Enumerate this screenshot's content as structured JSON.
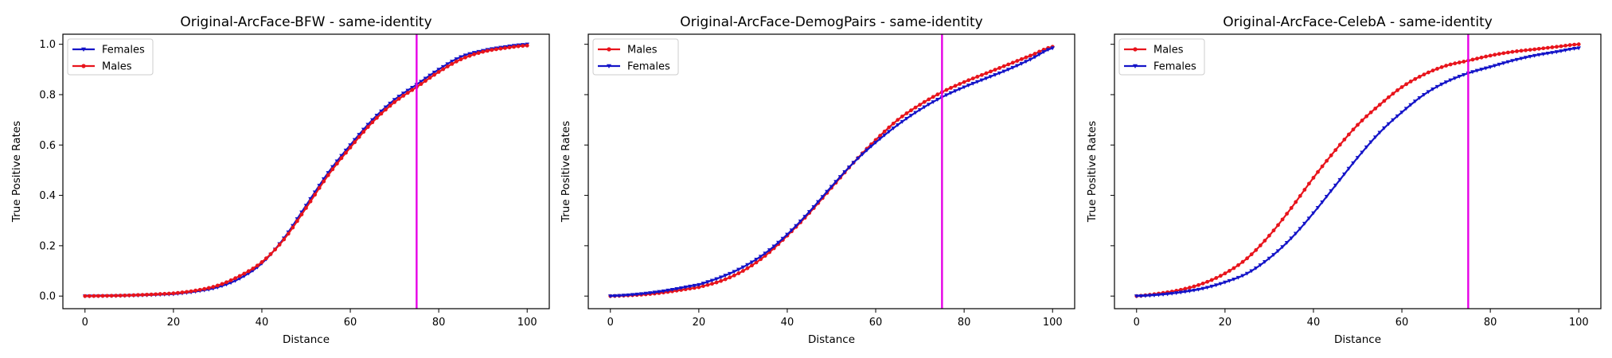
{
  "colors": {
    "males": "#e8141c",
    "females": "#1414c8",
    "threshold": "#e600e6",
    "frame": "#000000"
  },
  "chart_data": [
    {
      "type": "line",
      "title": "Original-ArcFace-BFW - same-identity",
      "xlabel": "Distance",
      "ylabel": "True Positive Rates",
      "xlim": [
        -5,
        105
      ],
      "ylim": [
        -0.05,
        1.04
      ],
      "xticks": [
        "0",
        "20",
        "40",
        "60",
        "80",
        "100"
      ],
      "yticks": [
        "0.0",
        "0.2",
        "0.4",
        "0.6",
        "0.8",
        "1.0"
      ],
      "show_ytick_labels": true,
      "grid": false,
      "legend_position": "top-left",
      "vline_x": 75,
      "x": [
        0,
        10,
        20,
        25,
        30,
        35,
        40,
        45,
        50,
        55,
        60,
        65,
        70,
        75,
        80,
        85,
        90,
        95,
        100
      ],
      "series": [
        {
          "name": "Females",
          "color_key": "females",
          "marker": "triangle-down",
          "values": [
            0.0,
            0.002,
            0.008,
            0.018,
            0.035,
            0.07,
            0.13,
            0.23,
            0.36,
            0.49,
            0.6,
            0.7,
            0.78,
            0.84,
            0.9,
            0.95,
            0.975,
            0.99,
            1.0
          ]
        },
        {
          "name": "Males",
          "color_key": "males",
          "marker": "circle",
          "values": [
            0.0,
            0.003,
            0.011,
            0.022,
            0.042,
            0.08,
            0.135,
            0.225,
            0.35,
            0.48,
            0.59,
            0.69,
            0.77,
            0.83,
            0.89,
            0.94,
            0.97,
            0.985,
            0.995
          ]
        }
      ]
    },
    {
      "type": "line",
      "title": "Original-ArcFace-DemogPairs - same-identity",
      "xlabel": "Distance",
      "ylabel": "True Positive Rates",
      "xlim": [
        -5,
        105
      ],
      "ylim": [
        -0.05,
        1.04
      ],
      "xticks": [
        "0",
        "20",
        "40",
        "60",
        "80",
        "100"
      ],
      "yticks": [
        "",
        "",
        "",
        "",
        "",
        ""
      ],
      "show_ytick_labels": false,
      "grid": false,
      "legend_position": "top-left",
      "vline_x": 75,
      "x": [
        0,
        10,
        20,
        25,
        30,
        35,
        40,
        45,
        50,
        55,
        60,
        65,
        70,
        75,
        80,
        85,
        90,
        95,
        100
      ],
      "series": [
        {
          "name": "Males",
          "color_key": "males",
          "marker": "circle",
          "values": [
            0.0,
            0.01,
            0.035,
            0.06,
            0.1,
            0.16,
            0.24,
            0.33,
            0.43,
            0.53,
            0.62,
            0.7,
            0.76,
            0.81,
            0.85,
            0.885,
            0.92,
            0.955,
            0.99
          ]
        },
        {
          "name": "Females",
          "color_key": "females",
          "marker": "triangle-down",
          "values": [
            0.0,
            0.015,
            0.045,
            0.075,
            0.115,
            0.17,
            0.245,
            0.335,
            0.435,
            0.53,
            0.61,
            0.68,
            0.74,
            0.79,
            0.83,
            0.865,
            0.9,
            0.94,
            0.985
          ]
        }
      ]
    },
    {
      "type": "line",
      "title": "Original-ArcFace-CelebA - same-identity",
      "xlabel": "Distance",
      "ylabel": "True Positive Rates",
      "xlim": [
        -5,
        105
      ],
      "ylim": [
        -0.05,
        1.04
      ],
      "xticks": [
        "0",
        "20",
        "40",
        "60",
        "80",
        "100"
      ],
      "yticks": [
        "",
        "",
        "",
        "",
        "",
        ""
      ],
      "show_ytick_labels": false,
      "grid": false,
      "legend_position": "top-left",
      "vline_x": 75,
      "x": [
        0,
        5,
        10,
        15,
        20,
        25,
        30,
        35,
        40,
        45,
        50,
        55,
        60,
        65,
        70,
        75,
        80,
        85,
        90,
        95,
        100
      ],
      "series": [
        {
          "name": "Males",
          "color_key": "males",
          "marker": "circle",
          "values": [
            0.0,
            0.01,
            0.025,
            0.05,
            0.09,
            0.15,
            0.24,
            0.35,
            0.47,
            0.58,
            0.68,
            0.76,
            0.83,
            0.88,
            0.915,
            0.935,
            0.955,
            0.97,
            0.98,
            0.99,
            1.0
          ]
        },
        {
          "name": "Females",
          "color_key": "females",
          "marker": "triangle-down",
          "values": [
            0.0,
            0.005,
            0.015,
            0.03,
            0.055,
            0.09,
            0.15,
            0.23,
            0.33,
            0.44,
            0.55,
            0.65,
            0.73,
            0.8,
            0.85,
            0.885,
            0.91,
            0.935,
            0.955,
            0.97,
            0.985
          ]
        }
      ]
    }
  ]
}
